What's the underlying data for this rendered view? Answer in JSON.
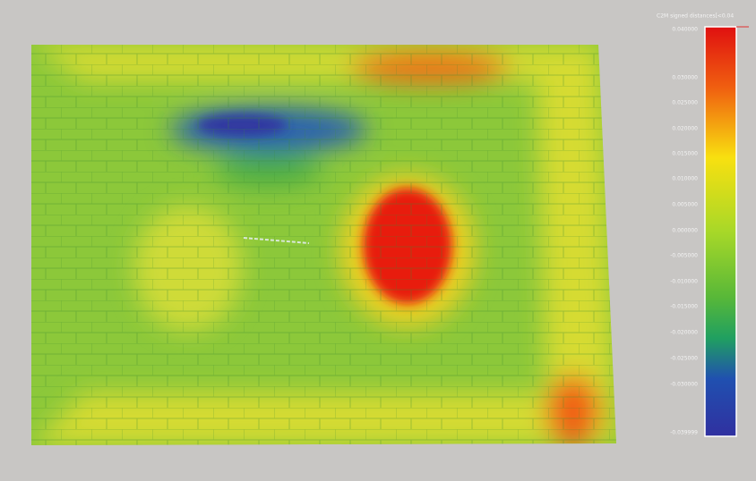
{
  "colorbar": {
    "title": "C2M signed distances[<0.04",
    "labels": [
      "0.040000",
      "0.030000",
      "0.025000",
      "0.020000",
      "0.015000",
      "0.010000",
      "0.005000",
      "0.000000",
      "-0.005000",
      "-0.010000",
      "-0.015000",
      "-0.020000",
      "-0.025000",
      "-0.030000",
      "-0.039999"
    ]
  }
}
